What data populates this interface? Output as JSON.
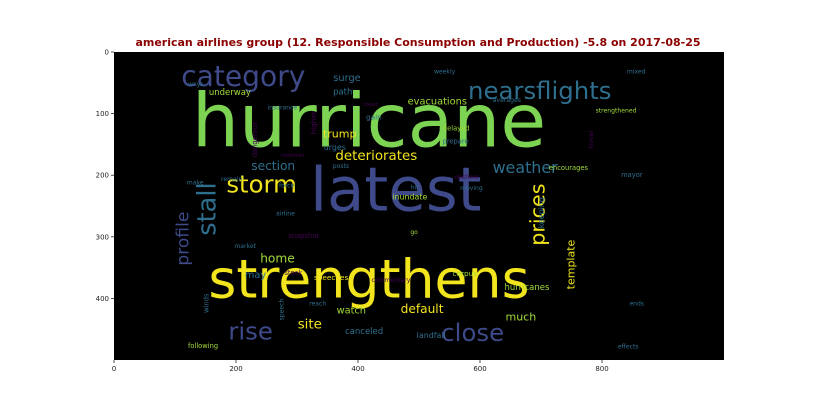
{
  "chart_data": {
    "type": "wordcloud",
    "title": "american airlines group (12. Responsible Consumption and Production) -5.8 on 2017-08-25",
    "background": "#000000",
    "title_color": "#8b0000",
    "xlim": [
      0,
      1000
    ],
    "ylim": [
      500,
      0
    ],
    "x_ticks": [
      0,
      200,
      400,
      600,
      800
    ],
    "y_ticks": [
      0,
      100,
      200,
      300,
      400
    ],
    "words": [
      {
        "text": "hurricane",
        "x": 418,
        "y": 120,
        "size": 122,
        "color": "#7dd352"
      },
      {
        "text": "latest",
        "x": 462,
        "y": 230,
        "size": 100,
        "color": "#3e4a89"
      },
      {
        "text": "strengthens",
        "x": 418,
        "y": 375,
        "size": 88,
        "color": "#f2e51d"
      },
      {
        "text": "category",
        "x": 212,
        "y": 42,
        "size": 46,
        "color": "#3e4a89"
      },
      {
        "text": "nearsflights",
        "x": 698,
        "y": 65,
        "size": 40,
        "color": "#2e6f8e"
      },
      {
        "text": "storm",
        "x": 242,
        "y": 217,
        "size": 40,
        "color": "#f2e51d"
      },
      {
        "text": "rise",
        "x": 224,
        "y": 455,
        "size": 40,
        "color": "#3e4a89"
      },
      {
        "text": "close",
        "x": 588,
        "y": 458,
        "size": 40,
        "color": "#3e4a89"
      },
      {
        "text": "weather",
        "x": 674,
        "y": 189,
        "size": 26,
        "color": "#2e6f8e"
      },
      {
        "text": "prices",
        "x": 696,
        "y": 264,
        "size": 34,
        "color": "#f2e51d",
        "rotate": -90
      },
      {
        "text": "stall",
        "x": 155,
        "y": 255,
        "size": 42,
        "color": "#2e6f8e",
        "rotate": -90
      },
      {
        "text": "profile",
        "x": 114,
        "y": 303,
        "size": 28,
        "color": "#3e4a89",
        "rotate": -90
      },
      {
        "text": "deteriorates",
        "x": 430,
        "y": 169,
        "size": 22,
        "color": "#f2e51d"
      },
      {
        "text": "section",
        "x": 261,
        "y": 186,
        "size": 20,
        "color": "#2e6f8e"
      },
      {
        "text": "trump",
        "x": 370,
        "y": 134,
        "size": 18,
        "color": "#f2e51d"
      },
      {
        "text": "evacuations",
        "x": 530,
        "y": 80,
        "size": 16,
        "color": "#a0da39"
      },
      {
        "text": "surge",
        "x": 382,
        "y": 42,
        "size": 16,
        "color": "#2e6f8e"
      },
      {
        "text": "home",
        "x": 268,
        "y": 336,
        "size": 20,
        "color": "#a0da39"
      },
      {
        "text": "may",
        "x": 232,
        "y": 362,
        "size": 16,
        "color": "#2e6f8e"
      },
      {
        "text": "site",
        "x": 321,
        "y": 442,
        "size": 22,
        "color": "#f2e51d"
      },
      {
        "text": "default",
        "x": 505,
        "y": 418,
        "size": 20,
        "color": "#f2e51d"
      },
      {
        "text": "watch",
        "x": 389,
        "y": 420,
        "size": 16,
        "color": "#a0da39"
      },
      {
        "text": "much",
        "x": 667,
        "y": 431,
        "size": 18,
        "color": "#a0da39"
      },
      {
        "text": "canceled",
        "x": 410,
        "y": 454,
        "size": 14,
        "color": "#2e6f8e"
      },
      {
        "text": "landfall",
        "x": 520,
        "y": 460,
        "size": 13,
        "color": "#2e6f8e"
      },
      {
        "text": "template",
        "x": 750,
        "y": 345,
        "size": 18,
        "color": "#f2e51d",
        "rotate": -90
      },
      {
        "text": "hurricanes",
        "x": 677,
        "y": 382,
        "size": 14,
        "color": "#a0da39"
      },
      {
        "text": "keeping",
        "x": 701,
        "y": 261,
        "size": 13,
        "color": "#2e6f8e",
        "rotate": -90
      },
      {
        "text": "underway",
        "x": 190,
        "y": 66,
        "size": 14,
        "color": "#a0da39"
      },
      {
        "text": "path",
        "x": 375,
        "y": 65,
        "size": 14,
        "color": "#2e6f8e"
      },
      {
        "text": "weekly",
        "x": 542,
        "y": 32,
        "size": 10,
        "color": "#2e6f8e"
      },
      {
        "text": "mixed",
        "x": 856,
        "y": 32,
        "size": 10,
        "color": "#2e6f8e"
      },
      {
        "text": "ways",
        "x": 134,
        "y": 52,
        "size": 10,
        "color": "#2e6f8e"
      },
      {
        "text": "averages",
        "x": 644,
        "y": 78,
        "size": 10,
        "color": "#2e6f8e"
      },
      {
        "text": "strengthened",
        "x": 823,
        "y": 95,
        "size": 10,
        "color": "#a0da39"
      },
      {
        "text": "insurance",
        "x": 276,
        "y": 90,
        "size": 10,
        "color": "#2e6f8e"
      },
      {
        "text": "cover",
        "x": 420,
        "y": 85,
        "size": 9,
        "color": "#440154"
      },
      {
        "text": "higher",
        "x": 328,
        "y": 115,
        "size": 12,
        "color": "#440154",
        "rotate": -90
      },
      {
        "text": "gain",
        "x": 426,
        "y": 106,
        "size": 12,
        "color": "#2e6f8e"
      },
      {
        "text": "delayed",
        "x": 561,
        "y": 124,
        "size": 11,
        "color": "#a0da39"
      },
      {
        "text": "prepare",
        "x": 560,
        "y": 145,
        "size": 11,
        "color": "#2e6f8e"
      },
      {
        "text": "urges",
        "x": 362,
        "y": 155,
        "size": 13,
        "color": "#2e6f8e"
      },
      {
        "text": "posts",
        "x": 372,
        "y": 185,
        "size": 10,
        "color": "#2e6f8e"
      },
      {
        "text": "dangerous",
        "x": 231,
        "y": 142,
        "size": 11,
        "color": "#440154",
        "rotate": -90
      },
      {
        "text": "motorists",
        "x": 293,
        "y": 168,
        "size": 8,
        "color": "#440154"
      },
      {
        "text": "remain",
        "x": 193,
        "y": 206,
        "size": 10,
        "color": "#2e6f8e"
      },
      {
        "text": "make",
        "x": 133,
        "y": 212,
        "size": 10,
        "color": "#2e6f8e"
      },
      {
        "text": "force",
        "x": 283,
        "y": 217,
        "size": 10,
        "color": "#2e6f8e"
      },
      {
        "text": "travel",
        "x": 782,
        "y": 142,
        "size": 10,
        "color": "#440154",
        "rotate": -90
      },
      {
        "text": "encourages",
        "x": 745,
        "y": 188,
        "size": 11,
        "color": "#a0da39"
      },
      {
        "text": "mayor",
        "x": 849,
        "y": 200,
        "size": 11,
        "color": "#2e6f8e"
      },
      {
        "text": "onshore",
        "x": 578,
        "y": 203,
        "size": 10,
        "color": "#440154"
      },
      {
        "text": "moving",
        "x": 586,
        "y": 221,
        "size": 10,
        "color": "#2e6f8e"
      },
      {
        "text": "hit",
        "x": 493,
        "y": 220,
        "size": 10,
        "color": "#2e6f8e"
      },
      {
        "text": "inundate",
        "x": 485,
        "y": 235,
        "size": 13,
        "color": "#a0da39"
      },
      {
        "text": "airline",
        "x": 281,
        "y": 262,
        "size": 10,
        "color": "#2e6f8e"
      },
      {
        "text": "snapshot",
        "x": 311,
        "y": 299,
        "size": 11,
        "color": "#440154"
      },
      {
        "text": "market",
        "x": 215,
        "y": 315,
        "size": 10,
        "color": "#2e6f8e"
      },
      {
        "text": "go",
        "x": 492,
        "y": 292,
        "size": 10,
        "color": "#a0da39"
      },
      {
        "text": "stock",
        "x": 294,
        "y": 359,
        "size": 11,
        "color": "#440154"
      },
      {
        "text": "speeches",
        "x": 356,
        "y": 367,
        "size": 12,
        "color": "#f2e51d"
      },
      {
        "text": "commentary",
        "x": 454,
        "y": 370,
        "size": 10,
        "color": "#440154"
      },
      {
        "text": "corpus",
        "x": 575,
        "y": 360,
        "size": 12,
        "color": "#a0da39"
      },
      {
        "text": "winds",
        "x": 152,
        "y": 408,
        "size": 11,
        "color": "#2e6f8e",
        "rotate": -90
      },
      {
        "text": "speech",
        "x": 275,
        "y": 418,
        "size": 10,
        "color": "#2e6f8e",
        "rotate": -90
      },
      {
        "text": "reach",
        "x": 334,
        "y": 408,
        "size": 10,
        "color": "#2e6f8e"
      },
      {
        "text": "following",
        "x": 146,
        "y": 477,
        "size": 11,
        "color": "#a0da39"
      },
      {
        "text": "ends",
        "x": 857,
        "y": 408,
        "size": 10,
        "color": "#2e6f8e"
      },
      {
        "text": "effects",
        "x": 843,
        "y": 478,
        "size": 10,
        "color": "#2e6f8e"
      }
    ]
  }
}
